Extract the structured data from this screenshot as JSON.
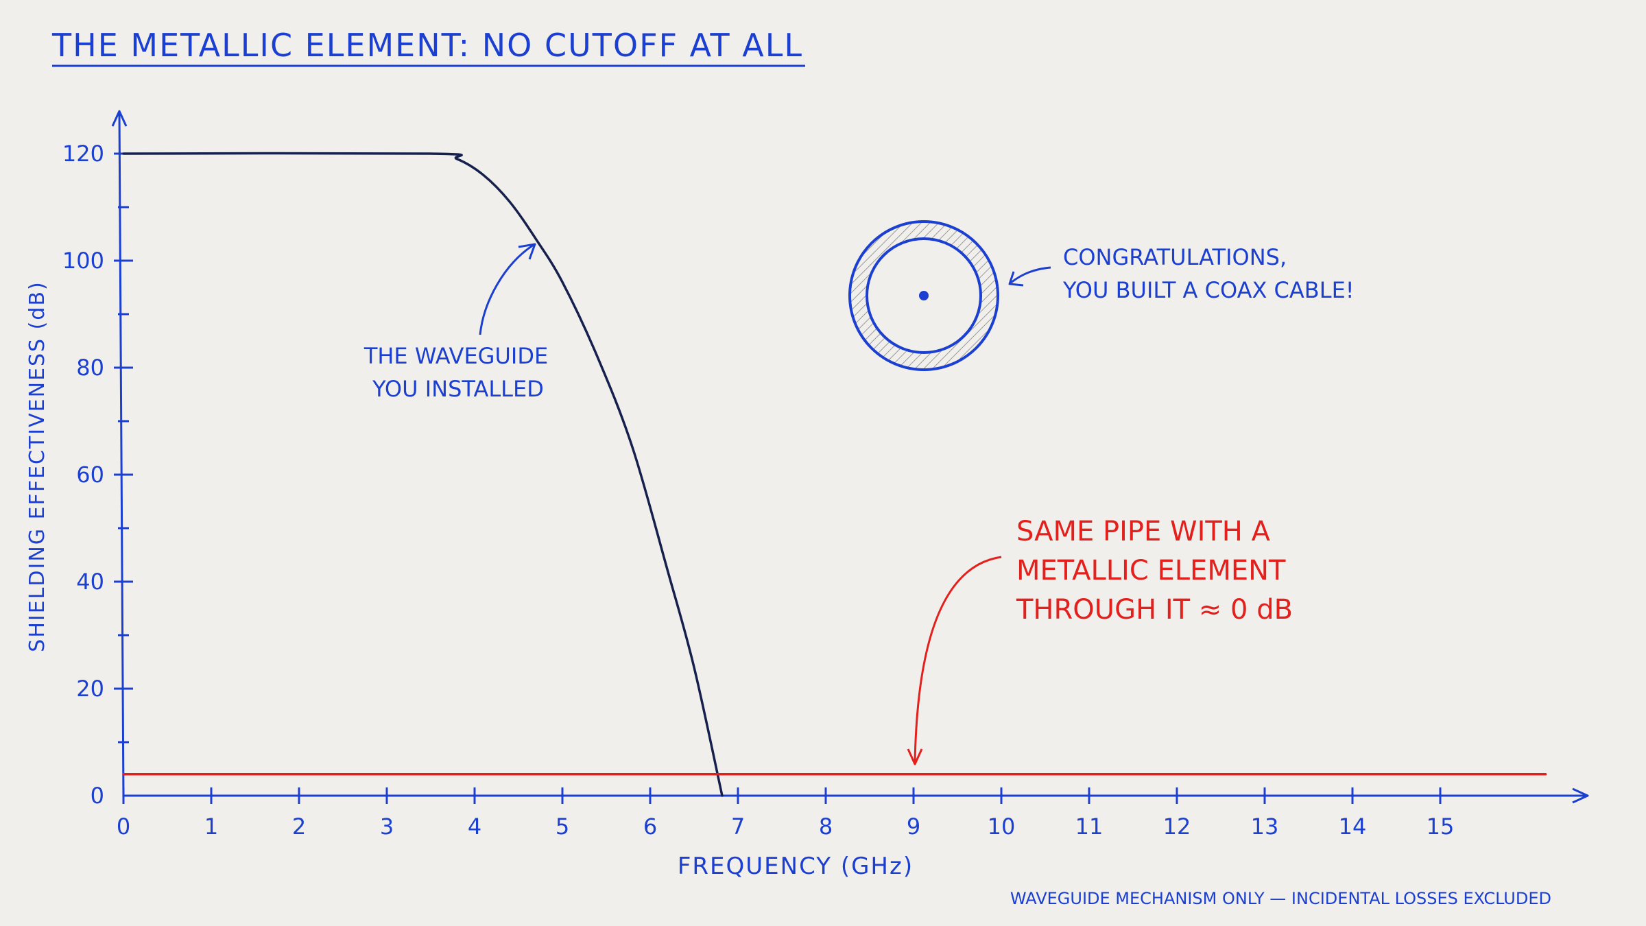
{
  "title": "THE METALLIC ELEMENT: NO CUTOFF AT ALL",
  "footnote": "WAVEGUIDE MECHANISM ONLY — INCIDENTAL LOSSES EXCLUDED",
  "colors": {
    "background": "#f1efeb",
    "axis_blue": "#1a3fd1",
    "navy_curve": "#16204d",
    "red": "#e3201c"
  },
  "annotations": {
    "waveguide": [
      "THE WAVEGUIDE",
      "YOU INSTALLED"
    ],
    "coax": [
      "CONGRATULATIONS,",
      "YOU BUILT A COAX CABLE!"
    ],
    "metallic": [
      "SAME PIPE WITH A",
      "METALLIC ELEMENT",
      "THROUGH IT ≈ 0 dB"
    ]
  },
  "icons": {
    "coax_cross_section": "coax-cross-section-icon"
  },
  "chart_data": {
    "type": "line",
    "title": "THE METALLIC ELEMENT: NO CUTOFF AT ALL",
    "xlabel": "FREQUENCY (GHz)",
    "ylabel": "SHIELDING EFFECTIVENESS (dB)",
    "xlim": [
      0,
      16.5
    ],
    "ylim": [
      0,
      120
    ],
    "xticks": [
      0,
      1,
      2,
      3,
      4,
      5,
      6,
      7,
      8,
      9,
      10,
      11,
      12,
      13,
      14,
      15
    ],
    "yticks": [
      0,
      20,
      40,
      60,
      80,
      100,
      120
    ],
    "yminor_step": 10,
    "grid": false,
    "legend": "none",
    "series": [
      {
        "color": "#16204d",
        "x": [
          0,
          3.5,
          3.8,
          4.1,
          4.4,
          4.7,
          5.0,
          5.4,
          5.8,
          6.2,
          6.5,
          6.82
        ],
        "y": [
          120,
          120,
          119,
          116,
          111,
          104,
          96,
          82,
          65,
          42,
          24,
          0
        ]
      },
      {
        "color": "#e3201c",
        "x": [
          0,
          16.2
        ],
        "y": [
          4,
          4
        ]
      }
    ]
  }
}
